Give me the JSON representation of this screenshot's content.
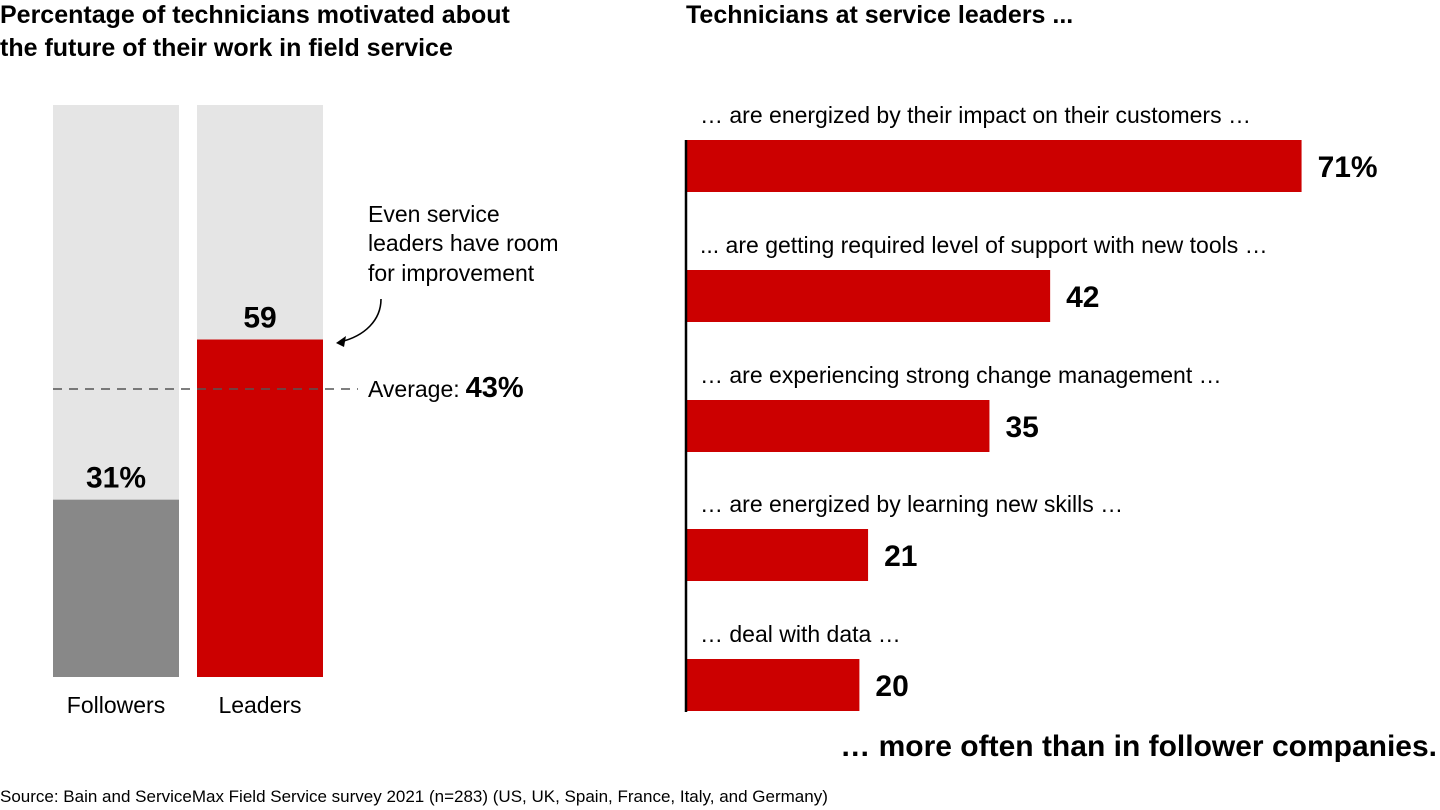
{
  "chart_data": [
    {
      "type": "bar",
      "orientation": "vertical",
      "title": "Percentage of technicians motivated about the future of their work in field service",
      "categories": [
        "Followers",
        "Leaders"
      ],
      "values": [
        31,
        59
      ],
      "value_labels": [
        "31%",
        "59"
      ],
      "ylim": [
        0,
        100
      ],
      "colors": [
        "#888888",
        "#cc0000"
      ],
      "background_color": "#e5e5e5",
      "reference_line": {
        "label": "Average:",
        "value_label": "43%",
        "value": 43,
        "style": "dashed"
      },
      "annotation": [
        "Even service",
        "leaders have room",
        "for improvement"
      ]
    },
    {
      "type": "bar",
      "orientation": "horizontal",
      "title": "Technicians at service leaders ...",
      "categories": [
        "… are energized by their impact on their customers …",
        "... are getting required level of support with new tools …",
        "… are experiencing strong change management …",
        "… are energized by learning new skills …",
        "… deal with data …"
      ],
      "values": [
        71,
        42,
        35,
        21,
        20
      ],
      "value_labels": [
        "71%",
        "42",
        "35",
        "21",
        "20"
      ],
      "color": "#cc0000",
      "footer": "… more often than in follower companies."
    }
  ],
  "source": "Source: Bain and ServiceMax Field Service survey 2021 (n=283) (US, UK, Spain, France, Italy, and Germany)"
}
